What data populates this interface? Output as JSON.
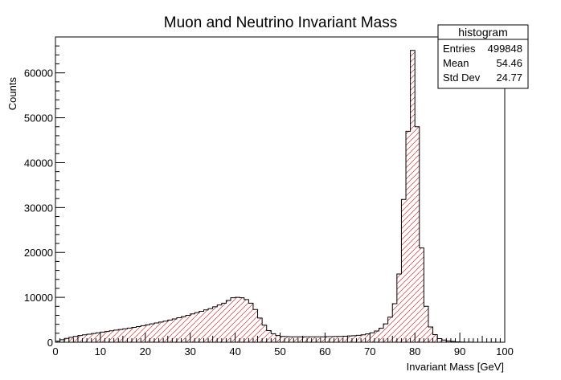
{
  "chart_data": {
    "type": "bar",
    "title": "Muon and Neutrino Invariant Mass",
    "xlabel": "Invariant Mass [GeV]",
    "ylabel": "Counts",
    "xlim": [
      0,
      100
    ],
    "ylim": [
      0,
      68000
    ],
    "bin_width": 1,
    "x_ticks": [
      0,
      10,
      20,
      30,
      40,
      50,
      60,
      70,
      80,
      90,
      100
    ],
    "y_ticks": [
      0,
      10000,
      20000,
      30000,
      40000,
      50000,
      60000
    ],
    "bar_fill_color": "#ffffff",
    "bar_hatch_color": "#cc3333",
    "bar_edge_color": "#000000",
    "grid": false,
    "stats_box": {
      "title": "histogram",
      "rows": [
        {
          "label": "Entries",
          "value": "499848"
        },
        {
          "label": "Mean",
          "value": "54.46"
        },
        {
          "label": "Std Dev",
          "value": "24.77"
        }
      ]
    },
    "series": [
      {
        "bin_edges_start": 0,
        "values": [
          250,
          550,
          850,
          1100,
          1300,
          1500,
          1650,
          1800,
          1950,
          2100,
          2250,
          2400,
          2550,
          2700,
          2850,
          3000,
          3150,
          3300,
          3500,
          3700,
          3900,
          4100,
          4300,
          4500,
          4700,
          4950,
          5200,
          5450,
          5700,
          6000,
          6300,
          6600,
          6900,
          7200,
          7500,
          7900,
          8300,
          8700,
          9300,
          9900,
          10000,
          9900,
          9500,
          8700,
          7300,
          5400,
          3800,
          2600,
          1900,
          1500,
          1300,
          1250,
          1200,
          1200,
          1200,
          1200,
          1200,
          1200,
          1200,
          1200,
          1250,
          1250,
          1300,
          1300,
          1350,
          1400,
          1450,
          1550,
          1650,
          1850,
          2100,
          2500,
          3100,
          4100,
          5600,
          8600,
          15200,
          31800,
          47000,
          65000,
          48000,
          21000,
          8000,
          3400,
          1700,
          800,
          500,
          300,
          200,
          100,
          50,
          30,
          20,
          10,
          5,
          0,
          0,
          0,
          0,
          0
        ]
      }
    ]
  }
}
